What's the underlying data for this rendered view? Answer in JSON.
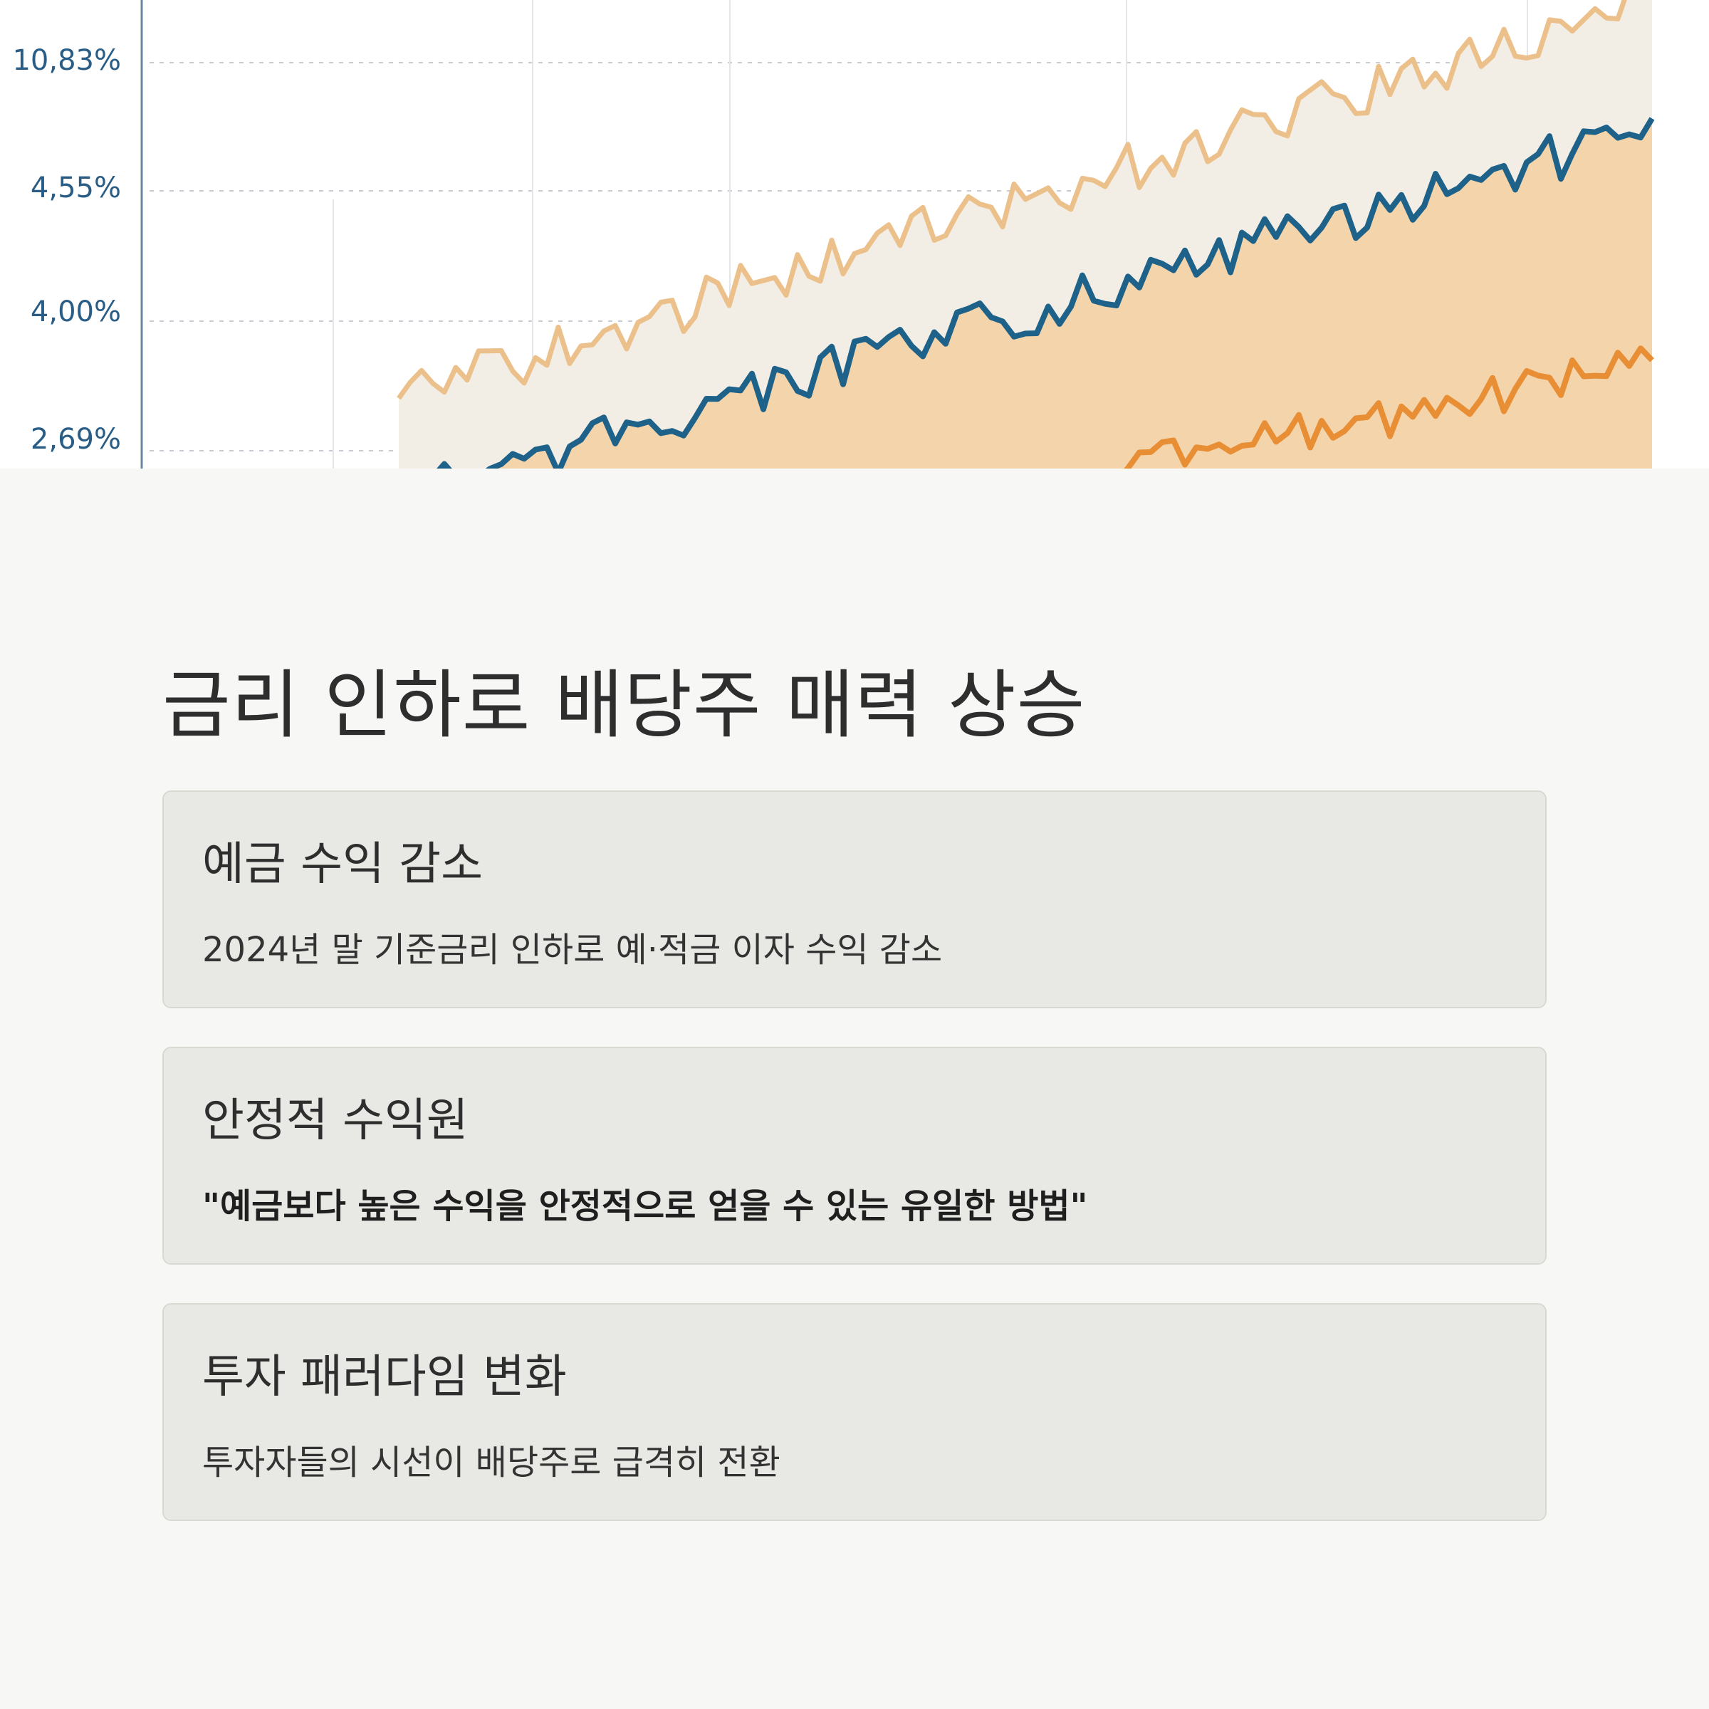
{
  "hero_chart": {
    "y_ticks": [
      "10,83%",
      "4,55%",
      "4,00%",
      "2,69%"
    ],
    "colors": {
      "upper_line": "#ecc08a",
      "middle_line": "#1f6289",
      "lower_line": "#e88e35",
      "area_fill": "#f5cfa0",
      "upper_band": "#f2eee6",
      "tick_text": "#2a5d86"
    }
  },
  "page": {
    "title": "금리 인하로 배당주 매력 상승"
  },
  "cards": [
    {
      "title": "예금 수익 감소",
      "text": "2024년 말 기준금리 인하로 예·적금 이자 수익 감소",
      "emphasis": false
    },
    {
      "title": "안정적 수익원",
      "text": "\"예금보다 높은 수익을 안정적으로 얻을 수 있는 유일한 방법\"",
      "emphasis": true
    },
    {
      "title": "투자 패러다임 변화",
      "text": "투자자들의 시선이 배당주로 급격히 전환",
      "emphasis": false
    }
  ]
}
